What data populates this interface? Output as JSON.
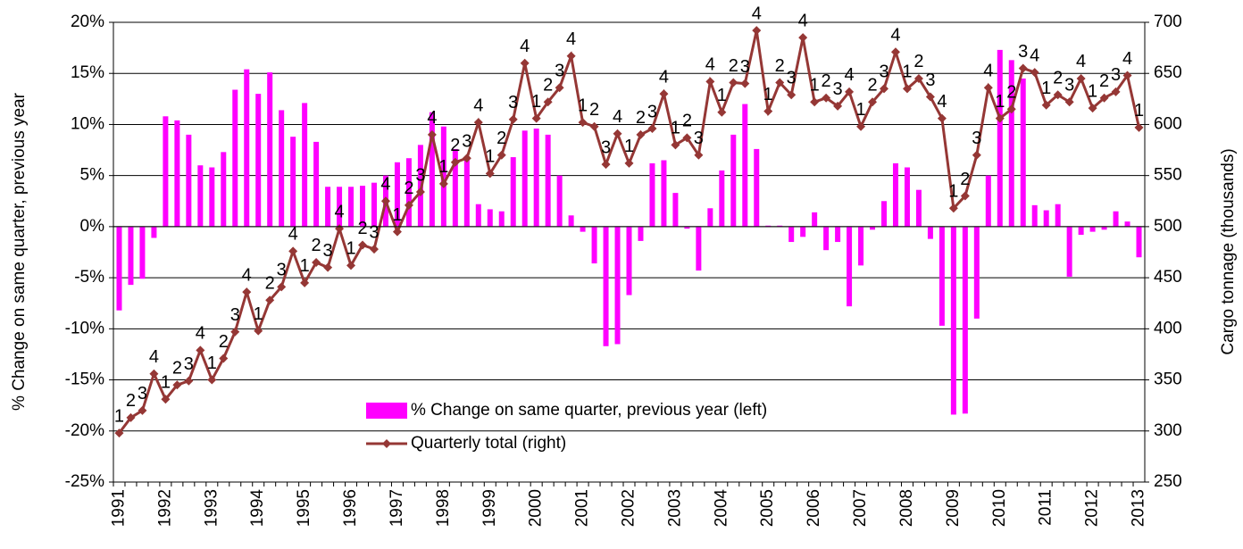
{
  "chart_data": {
    "type": "bar-line",
    "y_label": "% Change on same quarter, previous year",
    "y2_label": "Cargo tonnage (thousands)",
    "categories": [
      "1991",
      null,
      null,
      null,
      "1992",
      null,
      null,
      null,
      "1993",
      null,
      null,
      null,
      "1994",
      null,
      null,
      null,
      "1995",
      null,
      null,
      null,
      "1996",
      null,
      null,
      null,
      "1997",
      null,
      null,
      null,
      "1998",
      null,
      null,
      null,
      "1999",
      null,
      null,
      null,
      "2000",
      null,
      null,
      null,
      "2001",
      null,
      null,
      null,
      "2002",
      null,
      null,
      null,
      "2003",
      null,
      null,
      null,
      "2004",
      null,
      null,
      null,
      "2005",
      null,
      null,
      null,
      "2006",
      null,
      null,
      null,
      "2007",
      null,
      null,
      null,
      "2008",
      null,
      null,
      null,
      "2009",
      null,
      null,
      null,
      "2010",
      null,
      null,
      null,
      "2011",
      null,
      null,
      null,
      "2012",
      null,
      null,
      null,
      "2013"
    ],
    "quarter_labels": [
      "1",
      "2",
      "3",
      "4",
      "1",
      "2",
      "3",
      "4",
      "1",
      "2",
      "3",
      "4",
      "1",
      "2",
      "3",
      "4",
      "1",
      "2",
      "3",
      "4",
      "1",
      "2",
      "3",
      "4",
      "1",
      "2",
      "3",
      "4",
      "1",
      "2",
      "3",
      "4",
      "1",
      "2",
      "3",
      "4",
      "1",
      "2",
      "3",
      "4",
      "1",
      "2",
      "3",
      "4",
      "1",
      "2",
      "3",
      "4",
      "1",
      "2",
      "3",
      "4",
      "1",
      "2",
      "3",
      "4",
      "1",
      "2",
      "3",
      "4",
      "1",
      "2",
      "3",
      "4",
      "1",
      "2",
      "3",
      "4",
      "1",
      "2",
      "3",
      "4",
      "1",
      "2",
      "3",
      "4",
      "1",
      "2",
      "3",
      "4",
      "1",
      "2",
      "3",
      "4",
      "1",
      "2",
      "3",
      "4",
      "1"
    ],
    "series": [
      {
        "name": "% Change on same quarter, previous year (left)",
        "kind": "bar",
        "color": "#ff00ff",
        "values": [
          -8.2,
          -5.7,
          -5.1,
          -1.1,
          10.8,
          10.4,
          9.0,
          6.0,
          5.8,
          7.3,
          13.4,
          15.4,
          13.0,
          15.1,
          11.4,
          8.8,
          12.1,
          8.3,
          3.9,
          3.9,
          3.9,
          4.0,
          4.3,
          5.0,
          6.3,
          6.7,
          8.0,
          11.2,
          9.8,
          7.6,
          6.8,
          2.2,
          1.7,
          1.5,
          6.8,
          9.4,
          9.6,
          9.0,
          5.0,
          1.1,
          -0.5,
          -3.6,
          -11.7,
          -11.5,
          -6.7,
          -1.4,
          6.2,
          6.5,
          3.3,
          -0.2,
          -4.3,
          1.8,
          5.5,
          9.0,
          12.0,
          7.6,
          0.1,
          0.1,
          -1.5,
          -1.0,
          1.4,
          -2.3,
          -1.5,
          -7.8,
          -3.8,
          -0.3,
          2.5,
          6.2,
          5.8,
          3.6,
          -1.2,
          -9.7,
          -18.4,
          -18.3,
          -9.0,
          5.0,
          17.3,
          16.3,
          14.5,
          2.1,
          1.6,
          2.2,
          -4.9,
          -0.8,
          -0.5,
          -0.3,
          1.5,
          0.5,
          -3.0
        ]
      },
      {
        "name": "Quarterly total (right)",
        "kind": "line",
        "axis": "y2",
        "color": "#953735",
        "values": [
          298,
          313,
          320,
          356,
          331,
          345,
          349,
          379,
          350,
          371,
          397,
          436,
          398,
          428,
          441,
          476,
          445,
          465,
          460,
          498,
          462,
          482,
          478,
          525,
          495,
          521,
          534,
          590,
          542,
          563,
          567,
          602,
          552,
          570,
          605,
          660,
          606,
          622,
          636,
          667,
          602,
          598,
          561,
          591,
          562,
          590,
          596,
          630,
          580,
          587,
          570,
          642,
          612,
          641,
          640,
          692,
          613,
          641,
          629,
          685,
          622,
          626,
          618,
          632,
          598,
          622,
          635,
          671,
          635,
          645,
          627,
          606,
          518,
          530,
          570,
          636,
          606,
          615,
          655,
          651,
          619,
          629,
          622,
          645,
          616,
          626,
          632,
          648,
          597
        ]
      }
    ],
    "ylim": [
      -25,
      20
    ],
    "yticks": [
      {
        "value": -25,
        "label": "-25%"
      },
      {
        "value": -20,
        "label": "-20%"
      },
      {
        "value": -15,
        "label": "-15%"
      },
      {
        "value": -10,
        "label": "-10%"
      },
      {
        "value": -5,
        "label": "-5%"
      },
      {
        "value": 0,
        "label": "0%"
      },
      {
        "value": 5,
        "label": "5%"
      },
      {
        "value": 10,
        "label": "10%"
      },
      {
        "value": 15,
        "label": "15%"
      },
      {
        "value": 20,
        "label": "20%"
      }
    ],
    "y2lim": [
      250,
      700
    ],
    "y2ticks": [
      250,
      300,
      350,
      400,
      450,
      500,
      550,
      600,
      650,
      700
    ],
    "grid": true
  }
}
